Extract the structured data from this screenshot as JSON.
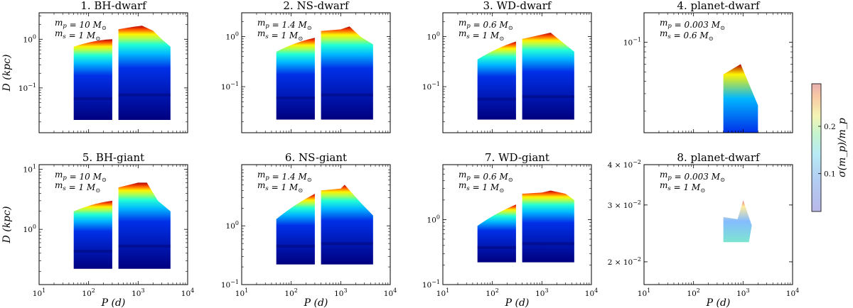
{
  "chart_data": {
    "type": "heatmap",
    "colorbar": {
      "label": "σ(m_p)/m_p",
      "range": [
        0.02,
        0.29
      ],
      "ticks": [
        "0.1",
        "0.2"
      ],
      "tick_values": [
        0.1,
        0.2
      ],
      "colormap": "jet"
    },
    "shared_x": {
      "label": "P (d)",
      "scale": "log",
      "range": [
        10,
        10000
      ],
      "ticks": [
        {
          "v": 10,
          "e": "1"
        },
        {
          "v": 100,
          "e": "2"
        },
        {
          "v": 1000,
          "e": "3"
        },
        {
          "v": 10000,
          "e": "4"
        }
      ]
    },
    "shared_y_label": "D (kpc)",
    "panels": [
      {
        "id": 1,
        "title": "1. BH-dwarf",
        "mp": "m_p = 10 M_⊙",
        "ms": "m_s = 1 M_⊙",
        "ylim": [
          0.012,
          3.5
        ],
        "yticks": [
          {
            "v": 0.1,
            "base": "10",
            "exp": "−1"
          },
          {
            "v": 1,
            "base": "10",
            "exp": "0"
          }
        ],
        "left": {
          "x": [
            50,
            300
          ],
          "top_start": 0.7,
          "top_end": 1.0
        },
        "right": {
          "x": [
            400,
            4500
          ],
          "top_profile": [
            [
              400,
              1.6
            ],
            [
              800,
              1.8
            ],
            [
              1200,
              1.9
            ],
            [
              2000,
              1.5
            ],
            [
              3000,
              1.0
            ],
            [
              4500,
              0.7
            ]
          ]
        },
        "bottom": 0.022
      },
      {
        "id": 2,
        "title": "2. NS-dwarf",
        "mp": "m_p = 1.4 M_⊙",
        "ms": "m_s = 1 M_⊙",
        "ylim": [
          0.012,
          3.0
        ],
        "yticks": [
          {
            "v": 0.1,
            "base": "10",
            "exp": "−1"
          },
          {
            "v": 1,
            "base": "10",
            "exp": "0"
          }
        ],
        "left": {
          "x": [
            50,
            300
          ],
          "top_start": 0.5,
          "top_end": 0.95
        },
        "right": {
          "x": [
            400,
            4500
          ],
          "top_profile": [
            [
              400,
              1.3
            ],
            [
              1000,
              1.4
            ],
            [
              1500,
              1.6
            ],
            [
              2500,
              1.0
            ],
            [
              4500,
              0.7
            ]
          ]
        },
        "bottom": 0.022
      },
      {
        "id": 3,
        "title": "3. WD-dwarf",
        "mp": "m_p = 0.6 M_⊙",
        "ms": "m_s = 1 M_⊙",
        "ylim": [
          0.012,
          3.0
        ],
        "yticks": [
          {
            "v": 0.1,
            "base": "10",
            "exp": "−1"
          },
          {
            "v": 1,
            "base": "10",
            "exp": "0"
          }
        ],
        "left": {
          "x": [
            50,
            300
          ],
          "top_start": 0.35,
          "top_end": 0.8
        },
        "right": {
          "x": [
            400,
            4500
          ],
          "top_profile": [
            [
              400,
              0.9
            ],
            [
              1000,
              1.1
            ],
            [
              1500,
              1.2
            ],
            [
              2500,
              0.8
            ],
            [
              4500,
              0.5
            ]
          ]
        },
        "bottom": 0.022
      },
      {
        "id": 4,
        "title": "4. planet-dwarf",
        "mp": "m_p = 0.003 M_⊙",
        "ms": "m_s = 0.6 M_⊙",
        "ylim": [
          0.012,
          0.2
        ],
        "yticks": [
          {
            "v": 0.1,
            "base": "10",
            "exp": "−1"
          }
        ],
        "blob": {
          "x": [
            400,
            2000
          ],
          "y": [
            0.012,
            0.06
          ]
        },
        "bottom": 0.012
      },
      {
        "id": 5,
        "title": "5. BH-giant",
        "mp": "m_p = 10 M_⊙",
        "ms": "m_s = 1 M_⊙",
        "ylim": [
          0.12,
          12
        ],
        "yticks": [
          {
            "v": 1,
            "base": "10",
            "exp": "0"
          },
          {
            "v": 10,
            "base": "10",
            "exp": "1"
          }
        ],
        "left": {
          "x": [
            50,
            300
          ],
          "top_start": 2.0,
          "top_end": 3.0
        },
        "right": {
          "x": [
            400,
            4500
          ],
          "top_profile": [
            [
              400,
              5
            ],
            [
              1000,
              6
            ],
            [
              1500,
              6
            ],
            [
              2500,
              3
            ],
            [
              4500,
              2
            ]
          ]
        },
        "bottom": 0.22
      },
      {
        "id": 6,
        "title": "6. NS-giant",
        "mp": "m_p = 1.4 M_⊙",
        "ms": "m_s = 1 M_⊙",
        "ylim": [
          0.1,
          11
        ],
        "yticks": [
          {
            "v": 0.1,
            "base": "10",
            "exp": "−1"
          },
          {
            "v": 1,
            "base": "10",
            "exp": "0"
          }
        ],
        "left": {
          "x": [
            50,
            300
          ],
          "top_start": 1.3,
          "top_end": 3.5
        },
        "right": {
          "x": [
            400,
            4500
          ],
          "top_profile": [
            [
              400,
              4.0
            ],
            [
              1000,
              4.3
            ],
            [
              1200,
              5.0
            ],
            [
              2500,
              2.5
            ],
            [
              4500,
              1.5
            ]
          ]
        },
        "bottom": 0.22
      },
      {
        "id": 7,
        "title": "7. WD-giant",
        "mp": "m_p = 0.6 M_⊙",
        "ms": "m_s = 1 M_⊙",
        "ylim": [
          0.1,
          7
        ],
        "yticks": [
          {
            "v": 0.1,
            "base": "10",
            "exp": "−1"
          },
          {
            "v": 1,
            "base": "10",
            "exp": "0"
          }
        ],
        "left": {
          "x": [
            50,
            300
          ],
          "top_start": 0.8,
          "top_end": 1.7
        },
        "right": {
          "x": [
            400,
            4500
          ],
          "top_profile": [
            [
              400,
              2.5
            ],
            [
              1000,
              2.6
            ],
            [
              1500,
              2.8
            ],
            [
              3000,
              2.5
            ],
            [
              4500,
              2.0
            ]
          ]
        },
        "bottom": 0.22
      },
      {
        "id": 8,
        "title": "8. planet-dwarf",
        "mp": "m_p = 0.003 M_⊙",
        "ms": "m_s = 1 M_⊙",
        "ylim": [
          0.017,
          0.04
        ],
        "yticks": [
          {
            "v": 0.02,
            "base": "2 × 10",
            "exp": "−2"
          },
          {
            "v": 0.03,
            "base": "3 × 10",
            "exp": "−2"
          },
          {
            "v": 0.04,
            "base": "4 × 10",
            "exp": "−2"
          }
        ],
        "blob": {
          "x": [
            400,
            1500
          ],
          "y": [
            0.023,
            0.031
          ]
        },
        "bottom": 0.023
      }
    ]
  }
}
